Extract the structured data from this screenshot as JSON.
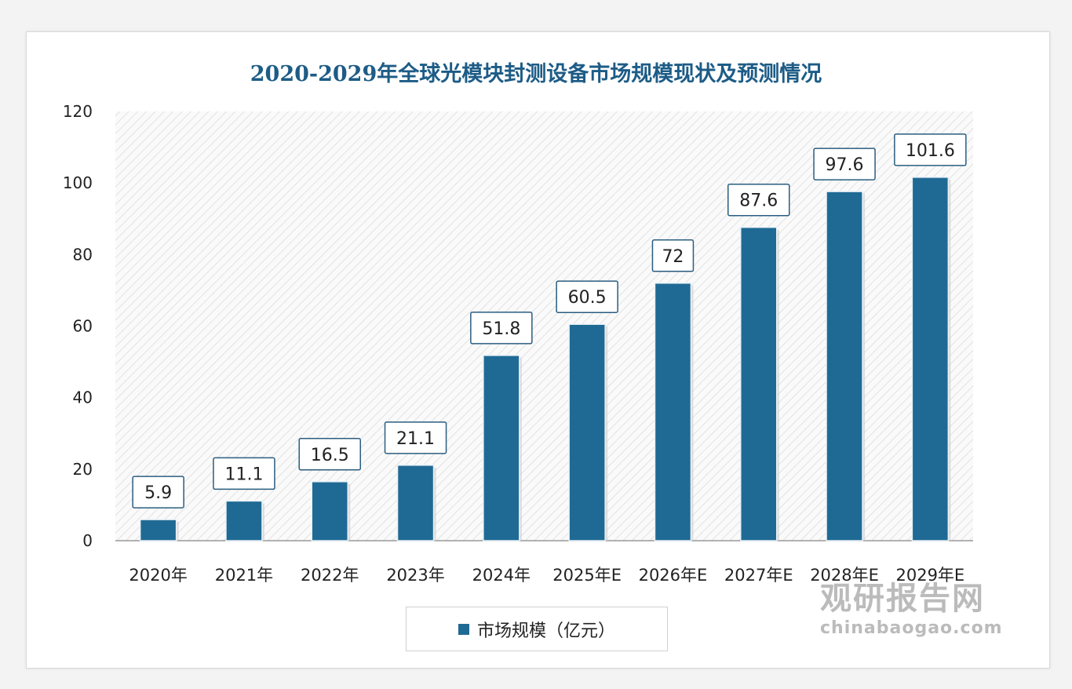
{
  "chart_data": {
    "type": "bar",
    "title": "2020-2029年全球光模块封测设备市场规模现状及预测情况",
    "categories": [
      "2020年",
      "2021年",
      "2022年",
      "2023年",
      "2024年",
      "2025年E",
      "2026年E",
      "2027年E",
      "2028年E",
      "2029年E"
    ],
    "series": [
      {
        "name": "市场规模（亿元）",
        "values": [
          5.9,
          11.1,
          16.5,
          21.1,
          51.8,
          60.5,
          72,
          87.6,
          97.6,
          101.6
        ]
      }
    ],
    "data_labels": [
      "5.9",
      "11.1",
      "16.5",
      "21.1",
      "51.8",
      "60.5",
      "72",
      "87.6",
      "97.6",
      "101.6"
    ],
    "ylim": [
      0,
      120
    ],
    "yticks": [
      0,
      20,
      40,
      60,
      80,
      100,
      120
    ],
    "xlabel": "",
    "ylabel": "",
    "legend": "bottom",
    "bar_color": "#1f6a94"
  },
  "watermark": {
    "name": "观研报告网",
    "url": "chinabaogao.com"
  }
}
